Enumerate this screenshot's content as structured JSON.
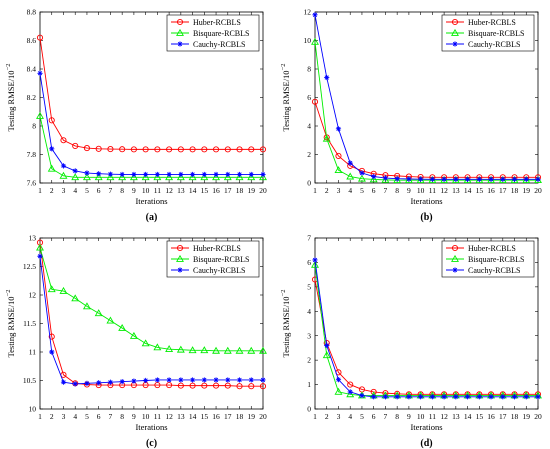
{
  "chart_data": [
    {
      "type": "line",
      "panel_label": "(a)",
      "xlabel": "Iterations",
      "ylabel": "Testing RMSE/10",
      "ylabel_exponent": "−2",
      "x": [
        1,
        2,
        3,
        4,
        5,
        6,
        7,
        8,
        9,
        10,
        11,
        12,
        13,
        14,
        15,
        16,
        17,
        18,
        19,
        20
      ],
      "xticks": [
        1,
        2,
        3,
        4,
        5,
        6,
        7,
        8,
        9,
        10,
        11,
        12,
        13,
        14,
        15,
        16,
        17,
        18,
        19,
        20
      ],
      "ylim": [
        7.6,
        8.8
      ],
      "yticks": [
        "7.6",
        "7.8",
        "8",
        "8.2",
        "8.4",
        "8.6",
        "8.8"
      ],
      "legend_position": "top-right",
      "series": [
        {
          "name": "Huber-RCBLS",
          "color": "#ff0000",
          "marker": "circle",
          "values": [
            8.62,
            8.04,
            7.9,
            7.86,
            7.845,
            7.84,
            7.838,
            7.837,
            7.836,
            7.836,
            7.836,
            7.836,
            7.836,
            7.836,
            7.836,
            7.836,
            7.836,
            7.836,
            7.836,
            7.836
          ]
        },
        {
          "name": "Bisquare-RCBLS",
          "color": "#00ee00",
          "marker": "triangle",
          "values": [
            8.07,
            7.7,
            7.65,
            7.64,
            7.64,
            7.64,
            7.64,
            7.64,
            7.64,
            7.64,
            7.64,
            7.64,
            7.64,
            7.64,
            7.64,
            7.64,
            7.64,
            7.64,
            7.64,
            7.64
          ]
        },
        {
          "name": "Cauchy-RCBLS",
          "color": "#0000ff",
          "marker": "star",
          "values": [
            8.37,
            7.84,
            7.72,
            7.685,
            7.67,
            7.665,
            7.662,
            7.66,
            7.66,
            7.66,
            7.66,
            7.66,
            7.66,
            7.66,
            7.66,
            7.66,
            7.66,
            7.66,
            7.66,
            7.66
          ]
        }
      ]
    },
    {
      "type": "line",
      "panel_label": "(b)",
      "xlabel": "Iterations",
      "ylabel": "Testing RMSE/10",
      "ylabel_exponent": "−2",
      "x": [
        1,
        2,
        3,
        4,
        5,
        6,
        7,
        8,
        9,
        10,
        11,
        12,
        13,
        14,
        15,
        16,
        17,
        18,
        19,
        20
      ],
      "xticks": [
        1,
        2,
        3,
        4,
        5,
        6,
        7,
        8,
        9,
        10,
        11,
        12,
        13,
        14,
        15,
        16,
        17,
        18,
        19,
        20
      ],
      "ylim": [
        0,
        12
      ],
      "yticks": [
        "0",
        "2",
        "4",
        "6",
        "8",
        "10",
        "12"
      ],
      "legend_position": "top-right",
      "series": [
        {
          "name": "Huber-RCBLS",
          "color": "#ff0000",
          "marker": "circle",
          "values": [
            5.7,
            3.2,
            1.9,
            1.2,
            0.85,
            0.65,
            0.55,
            0.5,
            0.45,
            0.42,
            0.4,
            0.4,
            0.4,
            0.4,
            0.4,
            0.4,
            0.4,
            0.4,
            0.4,
            0.4
          ]
        },
        {
          "name": "Bisquare-RCBLS",
          "color": "#00ee00",
          "marker": "triangle",
          "values": [
            9.9,
            3.1,
            0.9,
            0.45,
            0.3,
            0.25,
            0.22,
            0.2,
            0.2,
            0.2,
            0.2,
            0.2,
            0.2,
            0.2,
            0.2,
            0.2,
            0.2,
            0.2,
            0.2,
            0.2
          ]
        },
        {
          "name": "Cauchy-RCBLS",
          "color": "#0000ff",
          "marker": "star",
          "values": [
            11.8,
            7.4,
            3.8,
            1.4,
            0.7,
            0.45,
            0.35,
            0.3,
            0.28,
            0.27,
            0.26,
            0.26,
            0.26,
            0.26,
            0.26,
            0.26,
            0.26,
            0.26,
            0.26,
            0.26
          ]
        }
      ]
    },
    {
      "type": "line",
      "panel_label": "(c)",
      "xlabel": "Iterations",
      "ylabel": "Testing RMSE/10",
      "ylabel_exponent": "−2",
      "x": [
        1,
        2,
        3,
        4,
        5,
        6,
        7,
        8,
        9,
        10,
        11,
        12,
        13,
        14,
        15,
        16,
        17,
        18,
        19,
        20
      ],
      "xticks": [
        1,
        2,
        3,
        4,
        5,
        6,
        7,
        8,
        9,
        10,
        11,
        12,
        13,
        14,
        15,
        16,
        17,
        18,
        19,
        20
      ],
      "ylim": [
        10,
        13
      ],
      "yticks": [
        "10",
        "10.5",
        "11",
        "11.5",
        "12",
        "12.5",
        "13"
      ],
      "legend_position": "top-right",
      "series": [
        {
          "name": "Huber-RCBLS",
          "color": "#ff0000",
          "marker": "circle",
          "values": [
            12.92,
            11.27,
            10.6,
            10.45,
            10.43,
            10.42,
            10.42,
            10.42,
            10.42,
            10.42,
            10.42,
            10.42,
            10.41,
            10.41,
            10.41,
            10.41,
            10.41,
            10.4,
            10.4,
            10.4
          ]
        },
        {
          "name": "Bisquare-RCBLS",
          "color": "#00ee00",
          "marker": "triangle",
          "values": [
            12.83,
            12.1,
            12.07,
            11.94,
            11.8,
            11.68,
            11.55,
            11.42,
            11.28,
            11.15,
            11.08,
            11.05,
            11.04,
            11.03,
            11.03,
            11.02,
            11.02,
            11.02,
            11.02,
            11.02
          ]
        },
        {
          "name": "Cauchy-RCBLS",
          "color": "#0000ff",
          "marker": "star",
          "values": [
            12.68,
            11.0,
            10.47,
            10.44,
            10.45,
            10.46,
            10.47,
            10.48,
            10.49,
            10.5,
            10.51,
            10.51,
            10.51,
            10.51,
            10.51,
            10.51,
            10.51,
            10.51,
            10.51,
            10.51
          ]
        }
      ]
    },
    {
      "type": "line",
      "panel_label": "(d)",
      "xlabel": "Iterations",
      "ylabel": "Testing RMSE/10",
      "ylabel_exponent": "−2",
      "x": [
        1,
        2,
        3,
        4,
        5,
        6,
        7,
        8,
        9,
        10,
        11,
        12,
        13,
        14,
        15,
        16,
        17,
        18,
        19,
        20
      ],
      "xticks": [
        1,
        2,
        3,
        4,
        5,
        6,
        7,
        8,
        9,
        10,
        11,
        12,
        13,
        14,
        15,
        16,
        17,
        18,
        19,
        20
      ],
      "ylim": [
        0,
        7
      ],
      "yticks": [
        "0",
        "1",
        "2",
        "3",
        "4",
        "5",
        "6",
        "7"
      ],
      "legend_position": "top-right",
      "series": [
        {
          "name": "Huber-RCBLS",
          "color": "#ff0000",
          "marker": "circle",
          "values": [
            5.3,
            2.7,
            1.5,
            1.0,
            0.8,
            0.7,
            0.65,
            0.62,
            0.6,
            0.6,
            0.6,
            0.6,
            0.6,
            0.6,
            0.6,
            0.6,
            0.6,
            0.6,
            0.6,
            0.6
          ]
        },
        {
          "name": "Bisquare-RCBLS",
          "color": "#00ee00",
          "marker": "triangle",
          "values": [
            5.9,
            2.2,
            0.7,
            0.6,
            0.55,
            0.55,
            0.55,
            0.55,
            0.55,
            0.55,
            0.55,
            0.55,
            0.55,
            0.55,
            0.55,
            0.55,
            0.55,
            0.55,
            0.55,
            0.55
          ]
        },
        {
          "name": "Cauchy-RCBLS",
          "color": "#0000ff",
          "marker": "star",
          "values": [
            6.1,
            2.6,
            1.2,
            0.7,
            0.55,
            0.5,
            0.5,
            0.5,
            0.5,
            0.5,
            0.5,
            0.5,
            0.5,
            0.5,
            0.5,
            0.5,
            0.5,
            0.5,
            0.5,
            0.5
          ]
        }
      ]
    }
  ]
}
